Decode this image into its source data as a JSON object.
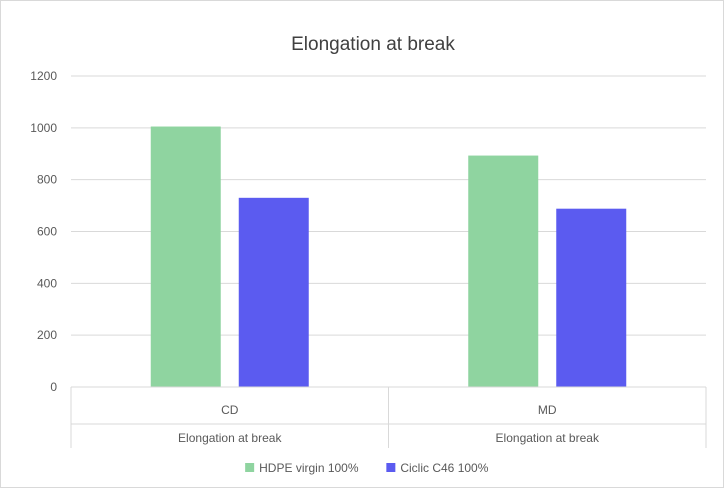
{
  "chart_data": {
    "type": "bar",
    "title": "Elongation at break",
    "xlabel": "",
    "ylabel": "",
    "ylim": [
      0,
      1200
    ],
    "ytick_step": 200,
    "yticks": [
      "0",
      "200",
      "400",
      "600",
      "800",
      "1000",
      "1200"
    ],
    "categories": [
      {
        "label": "CD",
        "group": "Elongation at break"
      },
      {
        "label": "MD",
        "group": "Elongation at break"
      }
    ],
    "series": [
      {
        "name": "HDPE virgin 100%",
        "color": "#8fd4a0",
        "values": [
          1005,
          893
        ]
      },
      {
        "name": "Ciclic C46 100%",
        "color": "#5b5bf0",
        "values": [
          730,
          688
        ]
      }
    ],
    "grid": true,
    "legend_position": "bottom"
  }
}
